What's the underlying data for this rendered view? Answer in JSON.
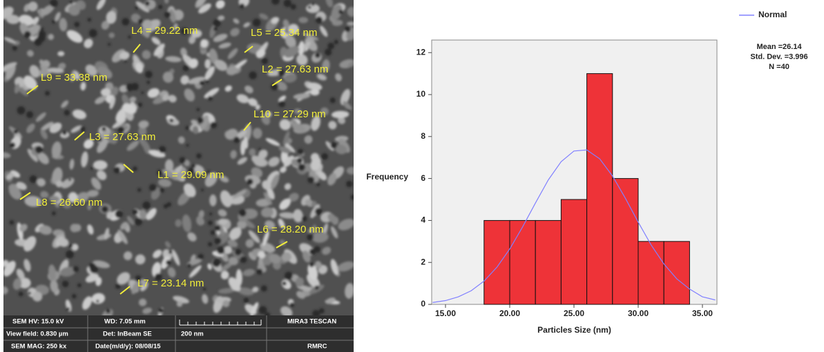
{
  "sem_image": {
    "measurements": [
      "L4 = 29.22 nm",
      "L5 = 25.34 nm",
      "L9 = 33.38 nm",
      "L2 = 27.63 nm",
      "L10 = 27.29 nm",
      "L3 = 27.63 nm",
      "L1 = 29.09 nm",
      "L8 = 26.60 nm",
      "L6 = 28.20 nm",
      "L7 = 23.14 nm"
    ],
    "info_bar": {
      "rows": [
        [
          "SEM HV: 15.0 kV",
          "WD: 7.05 mm",
          "MIRA3 TESCAN"
        ],
        [
          "View field: 0.830 µm",
          "Det: InBeam SE",
          "200 nm"
        ],
        [
          "SEM MAG: 250 kx",
          "Date(m/d/y): 08/08/15",
          "RMRC"
        ]
      ]
    }
  },
  "chart_data": {
    "type": "histogram",
    "x_label": "Particles Size (nm)",
    "y_label": "Frequency",
    "bins": [
      18,
      20,
      22,
      24,
      26,
      28,
      30,
      32,
      34
    ],
    "values": [
      4,
      4,
      4,
      5,
      11,
      6,
      3,
      3
    ],
    "color": "#ee3338",
    "xlim": [
      13.925,
      36.13
    ],
    "ylim": [
      0,
      12.6
    ],
    "xticks": [
      {
        "value": 15,
        "label": "15.00"
      },
      {
        "value": 20,
        "label": "20.00"
      },
      {
        "value": 25,
        "label": "25.00"
      },
      {
        "value": 30,
        "label": "30.00"
      },
      {
        "value": 35,
        "label": "35.00"
      }
    ],
    "yticks": [
      0,
      2,
      4,
      6,
      8,
      10,
      12
    ],
    "curve": {
      "name": "Normal",
      "color": "#8080ff",
      "x": [
        14,
        15,
        16,
        17,
        18,
        19,
        20,
        21,
        22,
        23,
        24,
        25,
        26,
        27,
        28,
        29,
        30,
        31,
        32,
        33,
        34,
        35,
        36
      ],
      "values": [
        0.09,
        0.18,
        0.36,
        0.65,
        1.11,
        1.77,
        2.64,
        3.69,
        4.83,
        5.93,
        6.8,
        7.31,
        7.36,
        6.94,
        6.12,
        5.06,
        3.92,
        2.84,
        1.93,
        1.22,
        0.73,
        0.36,
        0.21
      ]
    },
    "legend_position": "upper right",
    "annotations": [
      "Mean =26.14",
      "Std. Dev. =3.996",
      "N =40"
    ]
  }
}
